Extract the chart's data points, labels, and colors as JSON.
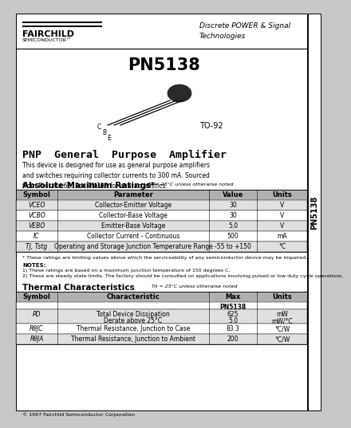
{
  "title": "PN5138",
  "subtitle": "PNP  General  Purpose  Amplifier",
  "fairchild_logo": "FAIRCHILD",
  "semiconductor_text": "SEMICONDUCTOR™",
  "discrete_text": "Discrete POWER & Signal\nTechnologies",
  "side_text": "PN5138",
  "package": "TO-92",
  "description": "This device is designed for use as general purpose amplifiers\nand switches requiring collector currents to 300 mA. Sourced\nfrom Process 68. See PN303 for characteristics.",
  "abs_max_title": "Absolute Maximum Ratings*",
  "abs_max_note": "TA = 25°C unless otherwise noted",
  "abs_max_headers": [
    "Symbol",
    "Parameter",
    "Value",
    "Units"
  ],
  "abs_symbol_col": [
    "VCEO",
    "VCBO",
    "VEBO",
    "IC",
    "TJ, Tstg"
  ],
  "abs_param_col": [
    "Collector-Emitter Voltage",
    "Collector-Base Voltage",
    "Emitter-Base Voltage",
    "Collector Current - Continuous",
    "Operating and Storage Junction Temperature Range"
  ],
  "abs_value_col": [
    "30",
    "30",
    "5.0",
    "500",
    "-55 to +150"
  ],
  "abs_units_col": [
    "V",
    "V",
    "V",
    "mA",
    "°C"
  ],
  "footnote1": "* These ratings are limiting values above which the serviceability of any semiconductor device may be impaired.",
  "notes_title": "NOTES:",
  "notes": [
    "1) These ratings are based on a maximum junction temperature of 150 degrees C.",
    "2) These are steady state limits. The factory should be consulted on applications involving pulsed or low duty cycle operations."
  ],
  "thermal_title": "Thermal Characteristics",
  "thermal_note": "TA = 25°C unless otherwise noted",
  "thermal_headers": [
    "Symbol",
    "Characteristic",
    "Max",
    "Units"
  ],
  "thermal_sub_header": "PN5138",
  "thermal_symbol_col": [
    "PD",
    "RθJC",
    "RθJA"
  ],
  "thermal_char_col": [
    "Total Device Dissipation\nDerate above 25°C",
    "Thermal Resistance, Junction to Case",
    "Thermal Resistance, Junction to Ambient"
  ],
  "thermal_max_col": [
    "625\n5.0",
    "83.3",
    "200"
  ],
  "thermal_units_col": [
    "mW\nmW/°C",
    "°C/W",
    "°C/W"
  ],
  "footer": "© 1997 Fairchild Semiconductor Corporation",
  "outer_bg": "#c8c8c8",
  "page_bg": "#ffffff",
  "tab_bg": "#ffffff",
  "header_gray": "#b0b0b0",
  "row_gray": "#e0e0e0"
}
